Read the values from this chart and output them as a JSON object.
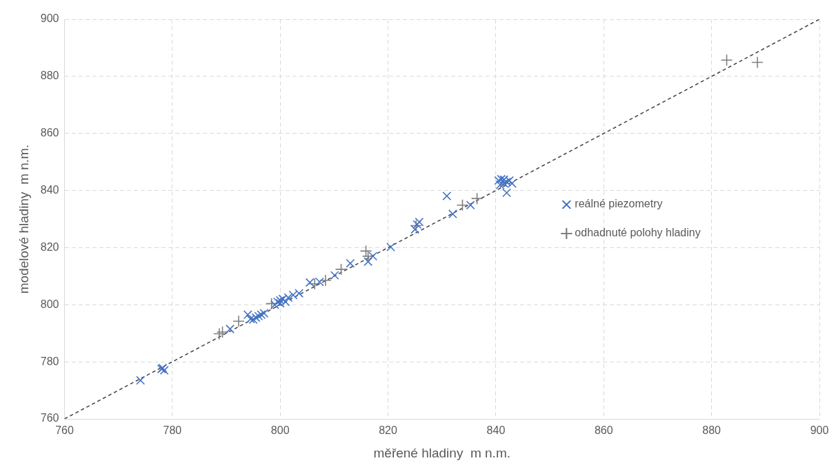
{
  "chart_data": {
    "type": "scatter",
    "xlabel": "měřené hladiny  m n.m.",
    "ylabel": "modelové hladiny  m n.m.",
    "xlim": [
      760,
      900
    ],
    "xticks": [
      760,
      780,
      800,
      820,
      840,
      860,
      880,
      900
    ],
    "ylim": [
      760,
      900
    ],
    "yticks": [
      760,
      780,
      800,
      820,
      840,
      860,
      880,
      900
    ],
    "grid": true,
    "legend": "right",
    "series": [
      {
        "name": "reálné piezometry",
        "color": "#4472c4",
        "marker": "x",
        "x": [
          774.1,
          778,
          778.5,
          778.2,
          790.7,
          794,
          794.5,
          795,
          795.5,
          796,
          796.5,
          797,
          799,
          799.5,
          800,
          800.5,
          801,
          801.5,
          800,
          802.4,
          803.5,
          805.5,
          807.3,
          810.1,
          813,
          816.3,
          817.2,
          820.5,
          825,
          825.4,
          825.8,
          830.9,
          832,
          835.3,
          840.5,
          841,
          841.5,
          842,
          840.8,
          843,
          841.5,
          842.5,
          842
        ],
        "values": [
          773.5,
          777.5,
          777,
          777.8,
          791.5,
          796.5,
          795,
          794.8,
          795.5,
          796,
          796.5,
          797,
          800,
          801,
          801.5,
          802,
          801,
          802.5,
          800.5,
          803.4,
          804,
          807.8,
          808,
          810.3,
          814.5,
          815.1,
          817,
          820.2,
          826.4,
          828.1,
          829,
          838.1,
          831.8,
          834.9,
          843.5,
          844,
          842.5,
          843,
          842,
          842.5,
          843.8,
          843.5,
          839.2
        ]
      },
      {
        "name": "odhadnuté polohy hladiny",
        "color": "#7f7f7f",
        "marker": "cross",
        "x": [
          788.7,
          789.3,
          792.3,
          798.4,
          806.4,
          808.4,
          811.3,
          815.9,
          816.3,
          825.2,
          833.8,
          836.5,
          882.8,
          888.5
        ],
        "values": [
          789.8,
          790.4,
          794.2,
          800.4,
          807.3,
          808.5,
          812.4,
          818.8,
          817,
          827.7,
          834.9,
          837.2,
          885.7,
          884.9
        ]
      },
      {
        "type": "line",
        "color": "#404040",
        "line_style": "dashed",
        "marker": "none",
        "x": [
          760,
          900
        ],
        "values": [
          760,
          900
        ]
      }
    ]
  }
}
